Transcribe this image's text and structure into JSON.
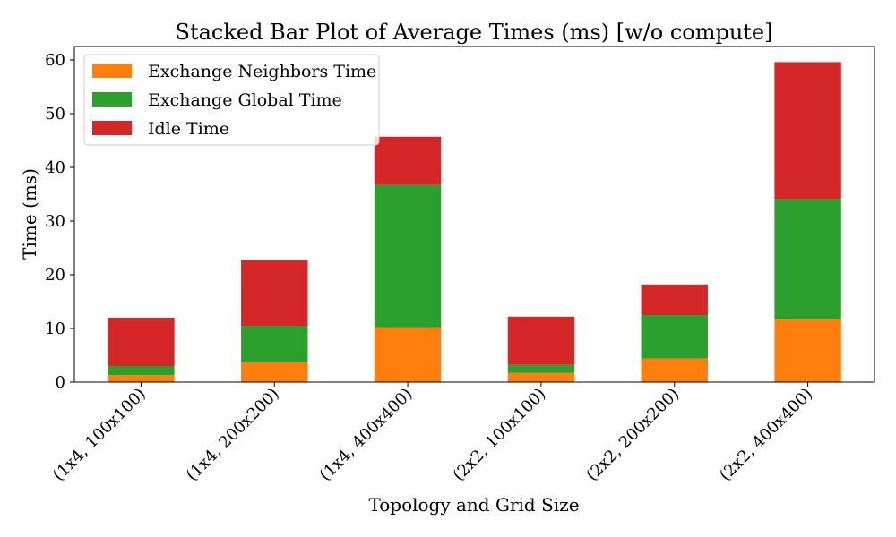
{
  "chart_data": {
    "type": "bar",
    "stacked": true,
    "title": "Stacked Bar Plot of Average Times (ms) [w/o compute]",
    "xlabel": "Topology and Grid Size",
    "ylabel": "Time (ms)",
    "ylim": [
      0,
      62.5
    ],
    "yticks": [
      0,
      10,
      20,
      30,
      40,
      50,
      60
    ],
    "categories": [
      "(1x4, 100x100)",
      "(1x4, 200x200)",
      "(1x4, 400x400)",
      "(2x2, 100x100)",
      "(2x2, 200x200)",
      "(2x2, 400x400)"
    ],
    "series": [
      {
        "name": "Exchange Neighbors Time",
        "color": "#ff7f0e",
        "values": [
          1.3,
          3.7,
          10.2,
          1.7,
          4.4,
          11.8
        ]
      },
      {
        "name": "Exchange Global Time",
        "color": "#2ca02c",
        "values": [
          1.7,
          6.8,
          26.5,
          1.5,
          8.1,
          22.3
        ]
      },
      {
        "name": "Idle Time",
        "color": "#d62728",
        "values": [
          9.0,
          12.2,
          9.0,
          9.0,
          5.7,
          25.5
        ]
      }
    ],
    "legend_position": "top-left",
    "grid": false
  }
}
